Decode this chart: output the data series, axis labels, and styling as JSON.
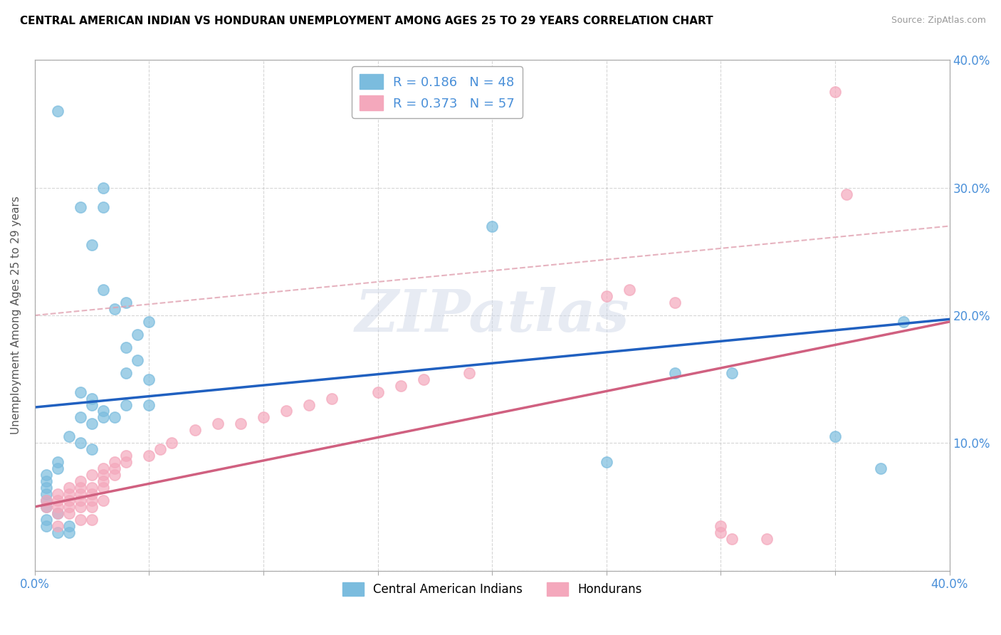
{
  "title": "CENTRAL AMERICAN INDIAN VS HONDURAN UNEMPLOYMENT AMONG AGES 25 TO 29 YEARS CORRELATION CHART",
  "source": "Source: ZipAtlas.com",
  "ylabel": "Unemployment Among Ages 25 to 29 years",
  "xlim": [
    0,
    0.4
  ],
  "ylim": [
    0,
    0.4
  ],
  "blue_color": "#7bbcde",
  "pink_color": "#f4a8bc",
  "blue_line_color": "#2060c0",
  "pink_line_color": "#d06080",
  "pink_dash_color": "#e0a0b0",
  "blue_R": 0.186,
  "blue_N": 48,
  "pink_R": 0.373,
  "pink_N": 57,
  "legend_label_blue": "Central American Indians",
  "legend_label_pink": "Hondurans",
  "watermark": "ZIPatlas",
  "blue_scatter": [
    [
      0.01,
      0.36
    ],
    [
      0.02,
      0.285
    ],
    [
      0.025,
      0.255
    ],
    [
      0.03,
      0.3
    ],
    [
      0.03,
      0.285
    ],
    [
      0.03,
      0.22
    ],
    [
      0.035,
      0.205
    ],
    [
      0.04,
      0.21
    ],
    [
      0.05,
      0.195
    ],
    [
      0.045,
      0.185
    ],
    [
      0.04,
      0.175
    ],
    [
      0.045,
      0.165
    ],
    [
      0.04,
      0.155
    ],
    [
      0.05,
      0.15
    ],
    [
      0.02,
      0.14
    ],
    [
      0.025,
      0.135
    ],
    [
      0.025,
      0.13
    ],
    [
      0.03,
      0.125
    ],
    [
      0.03,
      0.12
    ],
    [
      0.035,
      0.12
    ],
    [
      0.04,
      0.13
    ],
    [
      0.05,
      0.13
    ],
    [
      0.02,
      0.12
    ],
    [
      0.025,
      0.115
    ],
    [
      0.015,
      0.105
    ],
    [
      0.02,
      0.1
    ],
    [
      0.025,
      0.095
    ],
    [
      0.01,
      0.085
    ],
    [
      0.01,
      0.08
    ],
    [
      0.005,
      0.075
    ],
    [
      0.005,
      0.07
    ],
    [
      0.005,
      0.065
    ],
    [
      0.005,
      0.06
    ],
    [
      0.005,
      0.055
    ],
    [
      0.005,
      0.05
    ],
    [
      0.01,
      0.045
    ],
    [
      0.005,
      0.04
    ],
    [
      0.005,
      0.035
    ],
    [
      0.01,
      0.03
    ],
    [
      0.015,
      0.035
    ],
    [
      0.015,
      0.03
    ],
    [
      0.2,
      0.27
    ],
    [
      0.28,
      0.155
    ],
    [
      0.305,
      0.155
    ],
    [
      0.35,
      0.105
    ],
    [
      0.37,
      0.08
    ],
    [
      0.38,
      0.195
    ],
    [
      0.25,
      0.085
    ]
  ],
  "pink_scatter": [
    [
      0.005,
      0.055
    ],
    [
      0.005,
      0.05
    ],
    [
      0.01,
      0.06
    ],
    [
      0.01,
      0.055
    ],
    [
      0.01,
      0.05
    ],
    [
      0.01,
      0.045
    ],
    [
      0.01,
      0.035
    ],
    [
      0.015,
      0.065
    ],
    [
      0.015,
      0.06
    ],
    [
      0.015,
      0.055
    ],
    [
      0.015,
      0.05
    ],
    [
      0.015,
      0.045
    ],
    [
      0.02,
      0.07
    ],
    [
      0.02,
      0.065
    ],
    [
      0.02,
      0.06
    ],
    [
      0.02,
      0.055
    ],
    [
      0.02,
      0.05
    ],
    [
      0.02,
      0.04
    ],
    [
      0.025,
      0.075
    ],
    [
      0.025,
      0.065
    ],
    [
      0.025,
      0.06
    ],
    [
      0.025,
      0.055
    ],
    [
      0.025,
      0.05
    ],
    [
      0.025,
      0.04
    ],
    [
      0.03,
      0.08
    ],
    [
      0.03,
      0.075
    ],
    [
      0.03,
      0.07
    ],
    [
      0.03,
      0.065
    ],
    [
      0.03,
      0.055
    ],
    [
      0.035,
      0.085
    ],
    [
      0.035,
      0.08
    ],
    [
      0.035,
      0.075
    ],
    [
      0.04,
      0.09
    ],
    [
      0.04,
      0.085
    ],
    [
      0.05,
      0.09
    ],
    [
      0.055,
      0.095
    ],
    [
      0.06,
      0.1
    ],
    [
      0.07,
      0.11
    ],
    [
      0.08,
      0.115
    ],
    [
      0.09,
      0.115
    ],
    [
      0.1,
      0.12
    ],
    [
      0.11,
      0.125
    ],
    [
      0.12,
      0.13
    ],
    [
      0.13,
      0.135
    ],
    [
      0.15,
      0.14
    ],
    [
      0.16,
      0.145
    ],
    [
      0.17,
      0.15
    ],
    [
      0.19,
      0.155
    ],
    [
      0.25,
      0.215
    ],
    [
      0.26,
      0.22
    ],
    [
      0.28,
      0.21
    ],
    [
      0.3,
      0.03
    ],
    [
      0.3,
      0.035
    ],
    [
      0.305,
      0.025
    ],
    [
      0.35,
      0.375
    ],
    [
      0.355,
      0.295
    ],
    [
      0.32,
      0.025
    ]
  ]
}
